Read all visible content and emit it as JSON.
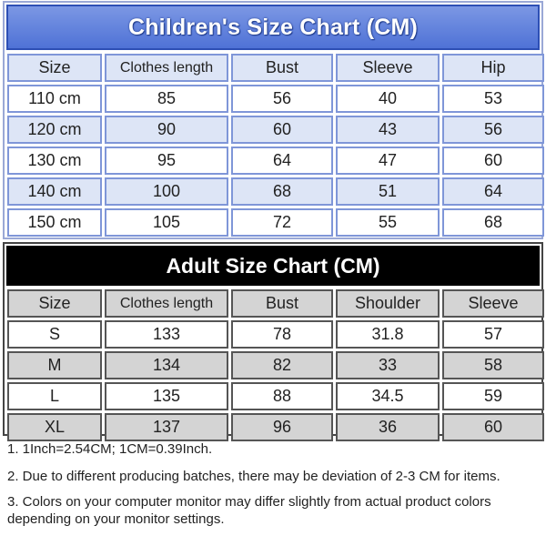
{
  "children_chart": {
    "title": "Children's Size Chart (CM)",
    "headers": [
      "Size",
      "Clothes length",
      "Bust",
      "Sleeve",
      "Hip"
    ],
    "rows": [
      [
        "110 cm",
        "85",
        "56",
        "40",
        "53"
      ],
      [
        "120 cm",
        "90",
        "60",
        "43",
        "56"
      ],
      [
        "130 cm",
        "95",
        "64",
        "47",
        "60"
      ],
      [
        "140 cm",
        "100",
        "68",
        "51",
        "64"
      ],
      [
        "150 cm",
        "105",
        "72",
        "55",
        "68"
      ]
    ]
  },
  "adult_chart": {
    "title": "Adult Size Chart (CM)",
    "headers": [
      "Size",
      "Clothes length",
      "Bust",
      "Shoulder",
      "Sleeve"
    ],
    "rows": [
      [
        "S",
        "133",
        "78",
        "31.8",
        "57"
      ],
      [
        "M",
        "134",
        "82",
        "33",
        "58"
      ],
      [
        "L",
        "135",
        "88",
        "34.5",
        "59"
      ],
      [
        "XL",
        "137",
        "96",
        "36",
        "60"
      ]
    ]
  },
  "notes": [
    "1. 1Inch=2.54CM; 1CM=0.39Inch.",
    "2. Due to different producing batches, there may be deviation of 2-3 CM for items.",
    "3. Colors on your computer monitor may differ slightly from actual product colors depending on your monitor settings."
  ],
  "colors": {
    "children_title_bg": "#4f72d6",
    "children_cell_border": "#7f96d8",
    "children_row_tint": "#dde5f6",
    "adult_title_bg": "#000000",
    "adult_row_tint": "#d4d4d4"
  }
}
